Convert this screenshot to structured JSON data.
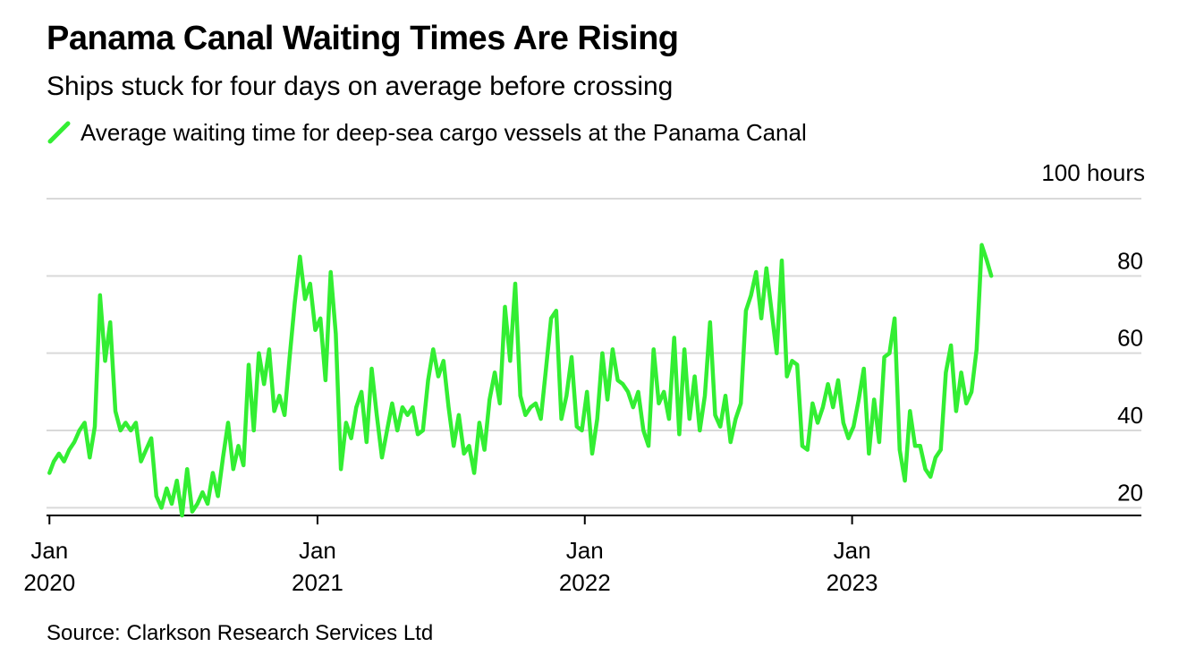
{
  "header": {
    "title": "Panama Canal Waiting Times Are Rising",
    "subtitle": "Ships stuck for four days on average before crossing"
  },
  "legend": {
    "label": "Average waiting time for deep-sea cargo vessels at the Panama Canal",
    "icon": "diagonal-line-swatch"
  },
  "unit_label": "100 hours",
  "footer": {
    "source": "Source: Clarkson Research Services Ltd"
  },
  "colors": {
    "series": "#33ee33",
    "grid": "#d9d9d9",
    "axis": "#000000"
  },
  "chart_data": {
    "type": "line",
    "title": "Panama Canal Waiting Times Are Rising",
    "subtitle": "Ships stuck for four days on average before crossing",
    "xlabel": "",
    "ylabel": "",
    "xlim": [
      "2019-12-28",
      "2024-01-31"
    ],
    "ylim": [
      18,
      100
    ],
    "y_ticks": [
      20,
      40,
      60,
      80
    ],
    "y_tick_labels": [
      "20",
      "40",
      "60",
      "80"
    ],
    "x_ticks": [
      {
        "date": "2020-01-01",
        "line1": "Jan",
        "line2": "2020"
      },
      {
        "date": "2021-01-01",
        "line1": "Jan",
        "line2": "2021"
      },
      {
        "date": "2022-01-01",
        "line1": "Jan",
        "line2": "2022"
      },
      {
        "date": "2023-01-01",
        "line1": "Jan",
        "line2": "2023"
      }
    ],
    "grid": true,
    "legend_position": "top-left",
    "series": [
      {
        "name": "Average waiting time for deep-sea cargo vessels at the Panama Canal",
        "color": "#33ee33",
        "points": [
          [
            "2020-01-01",
            29
          ],
          [
            "2020-01-07",
            32
          ],
          [
            "2020-01-14",
            34
          ],
          [
            "2020-01-21",
            32
          ],
          [
            "2020-01-28",
            35
          ],
          [
            "2020-02-04",
            37
          ],
          [
            "2020-02-11",
            40
          ],
          [
            "2020-02-18",
            42
          ],
          [
            "2020-02-25",
            33
          ],
          [
            "2020-03-03",
            41
          ],
          [
            "2020-03-10",
            75
          ],
          [
            "2020-03-17",
            58
          ],
          [
            "2020-03-24",
            68
          ],
          [
            "2020-03-31",
            45
          ],
          [
            "2020-04-07",
            40
          ],
          [
            "2020-04-14",
            42
          ],
          [
            "2020-04-21",
            40
          ],
          [
            "2020-04-28",
            42
          ],
          [
            "2020-05-05",
            32
          ],
          [
            "2020-05-12",
            35
          ],
          [
            "2020-05-19",
            38
          ],
          [
            "2020-05-26",
            23
          ],
          [
            "2020-06-02",
            20
          ],
          [
            "2020-06-09",
            25
          ],
          [
            "2020-06-16",
            21
          ],
          [
            "2020-06-23",
            27
          ],
          [
            "2020-06-30",
            18
          ],
          [
            "2020-07-07",
            30
          ],
          [
            "2020-07-14",
            19
          ],
          [
            "2020-07-21",
            21
          ],
          [
            "2020-07-28",
            24
          ],
          [
            "2020-08-04",
            21
          ],
          [
            "2020-08-11",
            29
          ],
          [
            "2020-08-18",
            23
          ],
          [
            "2020-08-25",
            33
          ],
          [
            "2020-09-01",
            42
          ],
          [
            "2020-09-08",
            30
          ],
          [
            "2020-09-15",
            36
          ],
          [
            "2020-09-22",
            31
          ],
          [
            "2020-09-29",
            57
          ],
          [
            "2020-10-06",
            40
          ],
          [
            "2020-10-13",
            60
          ],
          [
            "2020-10-20",
            52
          ],
          [
            "2020-10-27",
            61
          ],
          [
            "2020-11-03",
            45
          ],
          [
            "2020-11-10",
            49
          ],
          [
            "2020-11-17",
            44
          ],
          [
            "2020-11-24",
            59
          ],
          [
            "2020-12-01",
            73
          ],
          [
            "2020-12-08",
            85
          ],
          [
            "2020-12-15",
            74
          ],
          [
            "2020-12-22",
            78
          ],
          [
            "2020-12-29",
            66
          ],
          [
            "2021-01-05",
            69
          ],
          [
            "2021-01-12",
            53
          ],
          [
            "2021-01-19",
            81
          ],
          [
            "2021-01-26",
            65
          ],
          [
            "2021-02-02",
            30
          ],
          [
            "2021-02-09",
            42
          ],
          [
            "2021-02-16",
            38
          ],
          [
            "2021-02-23",
            46
          ],
          [
            "2021-03-02",
            50
          ],
          [
            "2021-03-09",
            37
          ],
          [
            "2021-03-16",
            56
          ],
          [
            "2021-03-23",
            44
          ],
          [
            "2021-03-30",
            33
          ],
          [
            "2021-04-06",
            40
          ],
          [
            "2021-04-13",
            47
          ],
          [
            "2021-04-20",
            40
          ],
          [
            "2021-04-27",
            46
          ],
          [
            "2021-05-04",
            44
          ],
          [
            "2021-05-11",
            46
          ],
          [
            "2021-05-18",
            39
          ],
          [
            "2021-05-25",
            40
          ],
          [
            "2021-06-01",
            53
          ],
          [
            "2021-06-08",
            61
          ],
          [
            "2021-06-15",
            54
          ],
          [
            "2021-06-22",
            58
          ],
          [
            "2021-06-29",
            46
          ],
          [
            "2021-07-06",
            36
          ],
          [
            "2021-07-13",
            44
          ],
          [
            "2021-07-20",
            34
          ],
          [
            "2021-07-27",
            36
          ],
          [
            "2021-08-03",
            29
          ],
          [
            "2021-08-10",
            42
          ],
          [
            "2021-08-17",
            35
          ],
          [
            "2021-08-24",
            48
          ],
          [
            "2021-08-31",
            55
          ],
          [
            "2021-09-07",
            47
          ],
          [
            "2021-09-14",
            72
          ],
          [
            "2021-09-21",
            58
          ],
          [
            "2021-09-28",
            78
          ],
          [
            "2021-10-05",
            49
          ],
          [
            "2021-10-12",
            44
          ],
          [
            "2021-10-19",
            46
          ],
          [
            "2021-10-26",
            47
          ],
          [
            "2021-11-02",
            43
          ],
          [
            "2021-11-09",
            56
          ],
          [
            "2021-11-16",
            69
          ],
          [
            "2021-11-23",
            71
          ],
          [
            "2021-11-30",
            43
          ],
          [
            "2021-12-07",
            49
          ],
          [
            "2021-12-14",
            59
          ],
          [
            "2021-12-21",
            41
          ],
          [
            "2021-12-28",
            40
          ],
          [
            "2022-01-04",
            50
          ],
          [
            "2022-01-11",
            34
          ],
          [
            "2022-01-18",
            43
          ],
          [
            "2022-01-25",
            60
          ],
          [
            "2022-02-01",
            48
          ],
          [
            "2022-02-08",
            61
          ],
          [
            "2022-02-15",
            53
          ],
          [
            "2022-02-22",
            52
          ],
          [
            "2022-03-01",
            50
          ],
          [
            "2022-03-08",
            46
          ],
          [
            "2022-03-15",
            50
          ],
          [
            "2022-03-22",
            40
          ],
          [
            "2022-03-29",
            36
          ],
          [
            "2022-04-05",
            61
          ],
          [
            "2022-04-12",
            47
          ],
          [
            "2022-04-19",
            50
          ],
          [
            "2022-04-26",
            43
          ],
          [
            "2022-05-03",
            64
          ],
          [
            "2022-05-10",
            39
          ],
          [
            "2022-05-17",
            61
          ],
          [
            "2022-05-24",
            43
          ],
          [
            "2022-05-31",
            54
          ],
          [
            "2022-06-07",
            40
          ],
          [
            "2022-06-14",
            49
          ],
          [
            "2022-06-21",
            68
          ],
          [
            "2022-06-28",
            44
          ],
          [
            "2022-07-05",
            41
          ],
          [
            "2022-07-12",
            49
          ],
          [
            "2022-07-19",
            37
          ],
          [
            "2022-07-26",
            43
          ],
          [
            "2022-08-02",
            47
          ],
          [
            "2022-08-09",
            71
          ],
          [
            "2022-08-16",
            75
          ],
          [
            "2022-08-23",
            81
          ],
          [
            "2022-08-30",
            69
          ],
          [
            "2022-09-06",
            82
          ],
          [
            "2022-09-13",
            71
          ],
          [
            "2022-09-20",
            60
          ],
          [
            "2022-09-27",
            84
          ],
          [
            "2022-10-04",
            54
          ],
          [
            "2022-10-11",
            58
          ],
          [
            "2022-10-18",
            57
          ],
          [
            "2022-10-25",
            36
          ],
          [
            "2022-11-01",
            35
          ],
          [
            "2022-11-08",
            47
          ],
          [
            "2022-11-15",
            42
          ],
          [
            "2022-11-22",
            46
          ],
          [
            "2022-11-29",
            52
          ],
          [
            "2022-12-06",
            46
          ],
          [
            "2022-12-13",
            53
          ],
          [
            "2022-12-20",
            42
          ],
          [
            "2022-12-27",
            38
          ],
          [
            "2023-01-03",
            41
          ],
          [
            "2023-01-10",
            48
          ],
          [
            "2023-01-17",
            56
          ],
          [
            "2023-01-24",
            34
          ],
          [
            "2023-01-31",
            48
          ],
          [
            "2023-02-07",
            37
          ],
          [
            "2023-02-14",
            59
          ],
          [
            "2023-02-21",
            60
          ],
          [
            "2023-02-28",
            69
          ],
          [
            "2023-03-07",
            35
          ],
          [
            "2023-03-14",
            27
          ],
          [
            "2023-03-21",
            45
          ],
          [
            "2023-03-28",
            36
          ],
          [
            "2023-04-04",
            36
          ],
          [
            "2023-04-11",
            30
          ],
          [
            "2023-04-18",
            28
          ],
          [
            "2023-04-25",
            33
          ],
          [
            "2023-05-02",
            35
          ],
          [
            "2023-05-09",
            55
          ],
          [
            "2023-05-16",
            62
          ],
          [
            "2023-05-23",
            45
          ],
          [
            "2023-05-30",
            55
          ],
          [
            "2023-06-06",
            47
          ],
          [
            "2023-06-13",
            50
          ],
          [
            "2023-06-20",
            61
          ],
          [
            "2023-06-27",
            88
          ],
          [
            "2023-07-04",
            84
          ],
          [
            "2023-07-10",
            80
          ]
        ]
      }
    ]
  }
}
